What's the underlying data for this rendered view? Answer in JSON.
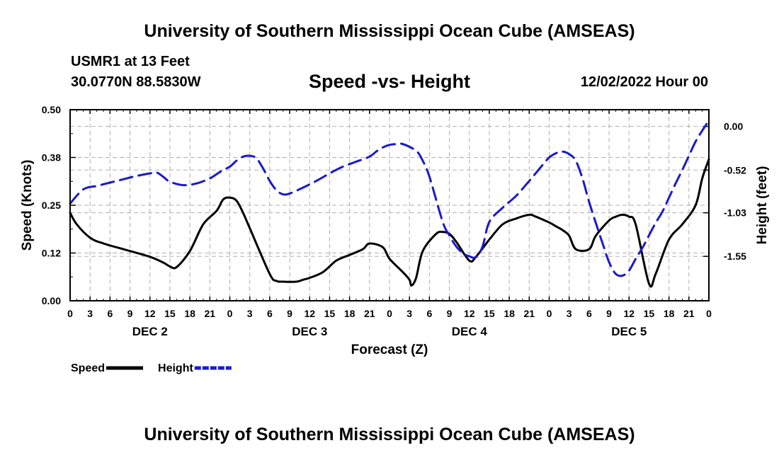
{
  "page": {
    "title": "University of Southern Mississippi Ocean Cube (AMSEAS)",
    "footer_title": "University of Southern Mississippi Ocean Cube (AMSEAS)",
    "station": "USMR1 at 13 Feet",
    "location": "30.0770N  88.5830W",
    "subtitle": "Speed -vs- Height",
    "datetime": "12/02/2022 Hour 00"
  },
  "chart_data": {
    "type": "line",
    "title": "Speed -vs- Height",
    "xlabel": "Forecast (Z)",
    "ylabel": "Speed (Knots)",
    "y2label": "Height (feet)",
    "x_range_hours": [
      0,
      96
    ],
    "x_ticks": [
      0,
      3,
      6,
      9,
      12,
      15,
      18,
      21,
      24,
      27,
      30,
      33,
      36,
      39,
      42,
      45,
      48,
      51,
      54,
      57,
      60,
      63,
      66,
      69,
      72,
      75,
      78,
      81,
      84,
      87,
      90,
      93,
      96
    ],
    "x_tick_labels": [
      "0",
      "3",
      "6",
      "9",
      "12",
      "15",
      "18",
      "21",
      "0",
      "3",
      "6",
      "9",
      "12",
      "15",
      "18",
      "21",
      "0",
      "3",
      "6",
      "9",
      "12",
      "15",
      "18",
      "21",
      "0",
      "3",
      "6",
      "9",
      "12",
      "15",
      "18",
      "21",
      "0"
    ],
    "day_labels": [
      {
        "label": "DEC 2",
        "hour": 12
      },
      {
        "label": "DEC 3",
        "hour": 36
      },
      {
        "label": "DEC 4",
        "hour": 60
      },
      {
        "label": "DEC 5",
        "hour": 84
      }
    ],
    "y_left": {
      "range": [
        0,
        0.5
      ],
      "ticks": [
        0,
        0.125,
        0.25,
        0.375,
        0.5
      ],
      "tick_labels": [
        "0.00",
        "0.12",
        "0.25",
        "0.38",
        "0.50"
      ]
    },
    "y_right": {
      "range": [
        -2.08,
        0.2
      ],
      "ticks": [
        0,
        -0.52,
        -1.03,
        -1.55
      ],
      "tick_labels": [
        "0.00",
        "-0.52",
        "-1.03",
        "-1.55"
      ]
    },
    "grid": true,
    "legend_position": "bottom-left",
    "series": [
      {
        "name": "Speed",
        "axis": "left",
        "color": "#000000",
        "dash": "solid",
        "x": [
          0,
          1,
          3,
          5,
          8,
          12,
          14,
          15,
          16,
          18,
          20,
          22,
          23,
          24,
          25,
          26,
          27,
          30,
          31,
          32,
          34,
          35,
          36,
          38,
          40,
          42,
          44,
          45,
          47,
          48,
          50,
          51,
          51.3,
          52,
          53,
          55,
          56,
          57,
          58,
          60,
          61,
          63,
          65,
          67,
          69,
          70,
          72,
          73,
          74,
          75,
          76,
          78,
          79,
          81,
          82,
          83,
          84,
          85,
          87,
          88,
          90,
          92,
          94,
          95,
          96
        ],
        "values": [
          0.23,
          0.2,
          0.165,
          0.15,
          0.135,
          0.115,
          0.1,
          0.09,
          0.088,
          0.13,
          0.2,
          0.235,
          0.265,
          0.27,
          0.262,
          0.23,
          0.19,
          0.07,
          0.052,
          0.05,
          0.05,
          0.055,
          0.06,
          0.075,
          0.105,
          0.12,
          0.135,
          0.15,
          0.14,
          0.11,
          0.075,
          0.055,
          0.04,
          0.06,
          0.13,
          0.175,
          0.18,
          0.175,
          0.155,
          0.105,
          0.115,
          0.16,
          0.2,
          0.215,
          0.225,
          0.22,
          0.205,
          0.195,
          0.185,
          0.17,
          0.135,
          0.135,
          0.17,
          0.21,
          0.22,
          0.225,
          0.22,
          0.2,
          0.045,
          0.07,
          0.16,
          0.2,
          0.25,
          0.32,
          0.37
        ]
      },
      {
        "name": "Height",
        "axis": "right",
        "color": "#1a1acc",
        "dash": "dashed",
        "x": [
          0,
          2,
          4,
          6,
          8,
          10,
          12,
          13,
          14,
          15,
          17,
          19,
          21,
          22,
          23,
          24,
          25,
          26,
          27,
          28,
          29,
          30,
          31,
          32,
          33,
          35,
          37,
          39,
          41,
          43,
          45,
          46,
          47,
          48,
          49,
          50,
          52,
          53,
          54,
          56,
          57,
          58,
          59,
          60,
          61,
          62,
          63,
          65,
          67,
          69,
          71,
          72,
          73,
          74,
          75,
          76,
          77,
          78,
          79,
          80,
          81,
          82,
          83,
          84,
          85,
          86,
          87,
          88,
          89,
          90,
          91,
          92,
          93,
          94,
          95,
          96
        ],
        "values": [
          -0.92,
          -0.75,
          -0.71,
          -0.67,
          -0.63,
          -0.59,
          -0.56,
          -0.55,
          -0.6,
          -0.66,
          -0.7,
          -0.68,
          -0.62,
          -0.57,
          -0.52,
          -0.48,
          -0.41,
          -0.36,
          -0.35,
          -0.38,
          -0.5,
          -0.65,
          -0.76,
          -0.81,
          -0.8,
          -0.73,
          -0.65,
          -0.56,
          -0.48,
          -0.42,
          -0.36,
          -0.3,
          -0.25,
          -0.22,
          -0.21,
          -0.21,
          -0.29,
          -0.41,
          -0.6,
          -1.14,
          -1.3,
          -1.43,
          -1.51,
          -1.55,
          -1.56,
          -1.43,
          -1.14,
          -0.97,
          -0.83,
          -0.65,
          -0.46,
          -0.37,
          -0.32,
          -0.3,
          -0.33,
          -0.41,
          -0.62,
          -0.9,
          -1.15,
          -1.39,
          -1.62,
          -1.76,
          -1.78,
          -1.72,
          -1.58,
          -1.45,
          -1.3,
          -1.15,
          -1.02,
          -0.85,
          -0.68,
          -0.52,
          -0.35,
          -0.18,
          -0.05,
          0.07
        ]
      }
    ],
    "legend": [
      {
        "label": "Speed",
        "color": "#000000",
        "dash": "solid"
      },
      {
        "label": "Height",
        "color": "#1a1acc",
        "dash": "dashed"
      }
    ]
  }
}
